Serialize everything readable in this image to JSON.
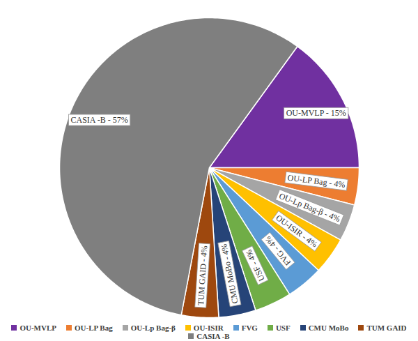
{
  "chart_data": {
    "type": "pie",
    "categories": [
      "OU-MVLP",
      "OU-LP Bag",
      "OU-Lp Bag-β",
      "OU-ISIR",
      "FVG",
      "USF",
      "CMU MoBo",
      "TUM GAID",
      "CASIA -B"
    ],
    "values": [
      15,
      4,
      4,
      4,
      4,
      4,
      4,
      4,
      57
    ],
    "value_labels": [
      "OU-MVLP - 15%",
      "OU-LP Bag - 4%",
      "OU-Lp Bag-β - 4%",
      "OU-ISIR - 4%",
      "FVG - 4%",
      "USF - 4%",
      "CMU MoBo - 4%",
      "TUM GAID - 4%",
      "CASIA -B - 57%"
    ],
    "colors": [
      "#7030A0",
      "#ED7D31",
      "#A5A5A5",
      "#FFC000",
      "#5B9BD5",
      "#70AD47",
      "#264478",
      "#9E480E",
      "#7F7F7F"
    ],
    "data_labels": true,
    "legend": "bottom"
  }
}
